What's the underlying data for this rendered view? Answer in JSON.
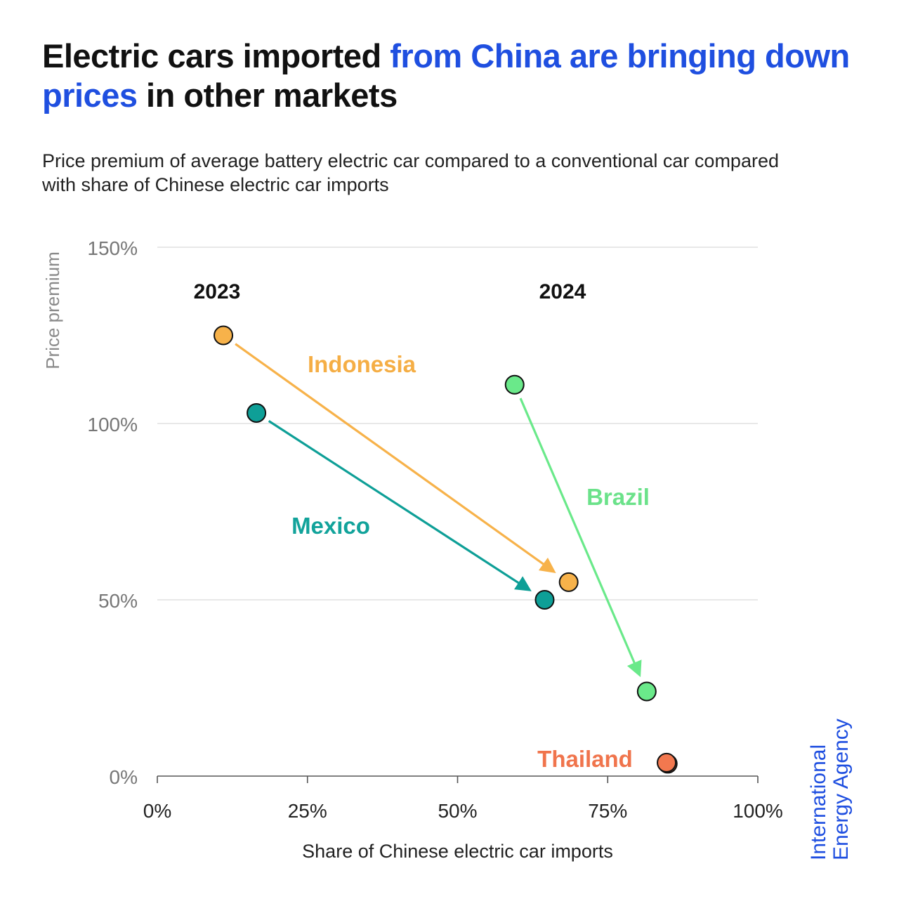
{
  "title": {
    "part1": "Electric cars imported ",
    "highlight": "from China are bringing down prices",
    "part2": " in other markets"
  },
  "subtitle": "Price premium of average battery electric car compared to a conventional car compared with share of Chinese electric car imports",
  "brand": {
    "line1": "International",
    "line2": "Energy Agency",
    "color": "#1f4fe0"
  },
  "colors": {
    "accent": "#1f4fe0",
    "grid": "#d9d9d9",
    "axis": "#555555",
    "tick_text": "#777777"
  },
  "chart_data": {
    "type": "scatter",
    "xlabel": "Share of Chinese electric car imports",
    "ylabel": "Price premium",
    "xlim": [
      0,
      100
    ],
    "ylim": [
      0,
      150
    ],
    "xticks": [
      "0%",
      "25%",
      "50%",
      "75%",
      "100%"
    ],
    "yticks": [
      "0%",
      "50%",
      "100%",
      "150%"
    ],
    "year_labels": [
      "2023",
      "2024"
    ],
    "grid": "horizontal",
    "series": [
      {
        "name": "Indonesia",
        "color": "#f7b24a",
        "label_color": "#f5ae45",
        "points": [
          {
            "year": "2023",
            "x": 11,
            "y": 125
          },
          {
            "year": "2024",
            "x": 68.5,
            "y": 55
          }
        ]
      },
      {
        "name": "Mexico",
        "color": "#0e9f97",
        "label_color": "#12a39b",
        "points": [
          {
            "year": "2023",
            "x": 16.5,
            "y": 103
          },
          {
            "year": "2024",
            "x": 64.5,
            "y": 50
          }
        ]
      },
      {
        "name": "Brazil",
        "color": "#6ae98a",
        "label_color": "#6be28a",
        "points": [
          {
            "year": "2023",
            "x": 59.5,
            "y": 111
          },
          {
            "year": "2024",
            "x": 81.5,
            "y": 24
          }
        ]
      },
      {
        "name": "Thailand",
        "color": "#f2784f",
        "label_color": "#f0744c",
        "points": [
          {
            "year": "2023",
            "x": 85,
            "y": 3.5
          },
          {
            "year": "2024",
            "x": 84.8,
            "y": 3.8
          }
        ]
      }
    ]
  }
}
